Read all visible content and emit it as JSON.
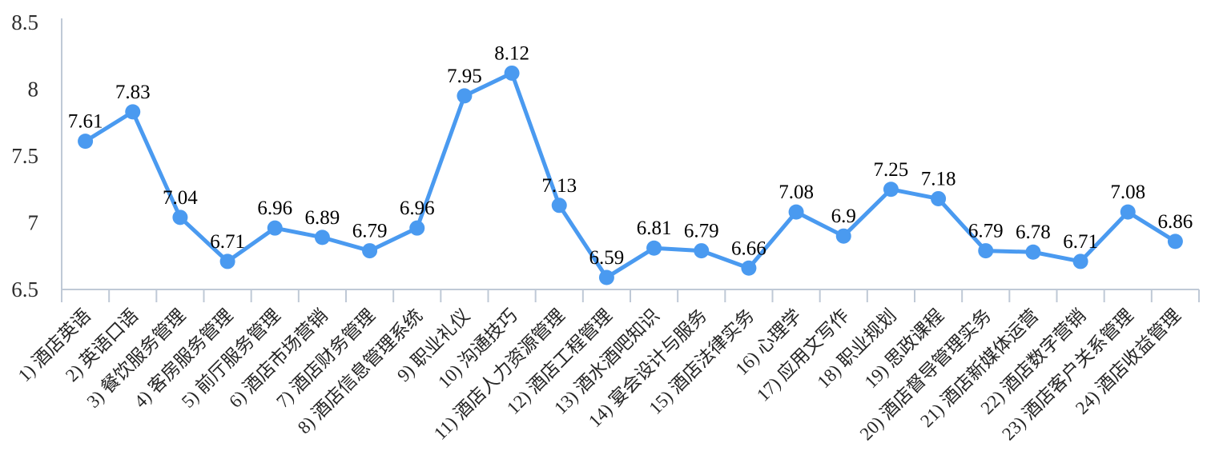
{
  "chart_data": {
    "type": "line",
    "title": "",
    "xlabel": "",
    "ylabel": "",
    "categories": [
      "1) 酒店英语",
      "2) 英语口语",
      "3) 餐饮服务管理",
      "4) 客房服务管理",
      "5) 前厅服务管理",
      "6) 酒店市场营销",
      "7) 酒店财务管理",
      "8) 酒店信息管理系统",
      "9) 职业礼仪",
      "10) 沟通技巧",
      "11) 酒店人力资源管理",
      "12) 酒店工程管理",
      "13) 酒水酒吧知识",
      "14) 宴会设计与服务",
      "15) 酒店法律实务",
      "16) 心理学",
      "17) 应用文写作",
      "18) 职业规划",
      "19) 思政课程",
      "20) 酒店督导管理实务",
      "21) 酒店新媒体运营",
      "22) 酒店数字营销",
      "23) 酒店客户关系管理",
      "24) 酒店收益管理"
    ],
    "series": [
      {
        "name": "",
        "values": [
          7.61,
          7.83,
          7.04,
          6.71,
          6.96,
          6.89,
          6.79,
          6.96,
          7.95,
          8.12,
          7.13,
          6.59,
          6.81,
          6.79,
          6.66,
          7.08,
          6.9,
          7.25,
          7.18,
          6.79,
          6.78,
          6.71,
          7.08,
          6.86
        ],
        "value_labels": [
          "7.61",
          "7.83",
          "7.04",
          "6.71",
          "6.96",
          "6.89",
          "6.79",
          "6.96",
          "7.95",
          "8.12",
          "7.13",
          "6.59",
          "6.81",
          "6.79",
          "6.66",
          "7.08",
          "6.9",
          "7.25",
          "7.18",
          "6.79",
          "6.78",
          "6.71",
          "7.08",
          "6.86"
        ]
      }
    ],
    "ylim": [
      6.5,
      8.5
    ],
    "yticks": [
      6.5,
      7,
      7.5,
      8,
      8.5
    ],
    "ytick_labels": [
      "6.5",
      "7",
      "7.5",
      "8",
      "8.5"
    ],
    "grid": false,
    "legend_position": "none",
    "x_label_rotation_deg": 45,
    "colors": {
      "line": "#4A9AF0",
      "marker": "#4A9AF0",
      "axis": "#BFC9D6",
      "data_label": "#000000",
      "tick_label": "#2E2E2E",
      "category_label": "#262626",
      "background": "#FFFFFF"
    }
  }
}
